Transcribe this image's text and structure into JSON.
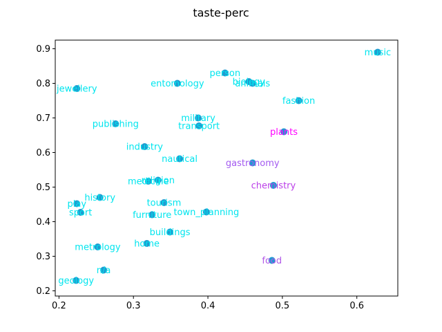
{
  "chart_data": {
    "type": "scatter",
    "title": "taste-perc",
    "xlabel": "",
    "ylabel": "",
    "xlim": [
      0.195,
      0.655
    ],
    "ylim": [
      0.185,
      0.925
    ],
    "xticks": [
      "0.2",
      "0.3",
      "0.4",
      "0.5",
      "0.6"
    ],
    "yticks": [
      "0.2",
      "0.3",
      "0.4",
      "0.5",
      "0.6",
      "0.7",
      "0.8",
      "0.9"
    ],
    "grid": false,
    "marker_color": "#1f9bd0",
    "points": [
      {
        "label": "music",
        "x": 0.628,
        "y": 0.89,
        "color": "#00e5ee"
      },
      {
        "label": "person",
        "x": 0.423,
        "y": 0.83,
        "color": "#00e5ee"
      },
      {
        "label": "biology",
        "x": 0.455,
        "y": 0.805,
        "color": "#00e5ee"
      },
      {
        "label": "animals",
        "x": 0.46,
        "y": 0.8,
        "color": "#00e5ee"
      },
      {
        "label": "entomology",
        "x": 0.359,
        "y": 0.8,
        "color": "#00e5ee"
      },
      {
        "label": "jewellery",
        "x": 0.224,
        "y": 0.785,
        "color": "#00e5ee"
      },
      {
        "label": "fashion",
        "x": 0.522,
        "y": 0.75,
        "color": "#00e5ee"
      },
      {
        "label": "military",
        "x": 0.387,
        "y": 0.7,
        "color": "#00e5ee"
      },
      {
        "label": "transport",
        "x": 0.388,
        "y": 0.677,
        "color": "#00e5ee"
      },
      {
        "label": "publishing",
        "x": 0.276,
        "y": 0.683,
        "color": "#00e5ee"
      },
      {
        "label": "plants",
        "x": 0.502,
        "y": 0.66,
        "color": "#ff00ff"
      },
      {
        "label": "industry",
        "x": 0.315,
        "y": 0.617,
        "color": "#00e5ee"
      },
      {
        "label": "nautical",
        "x": 0.362,
        "y": 0.582,
        "color": "#00e5ee"
      },
      {
        "label": "gastronomy",
        "x": 0.46,
        "y": 0.57,
        "color": "#a35af0"
      },
      {
        "label": "religion",
        "x": 0.333,
        "y": 0.52,
        "color": "#00e5ee"
      },
      {
        "label": "medicine",
        "x": 0.32,
        "y": 0.517,
        "color": "#00e5ee"
      },
      {
        "label": "chemistry",
        "x": 0.488,
        "y": 0.505,
        "color": "#bb3fe8"
      },
      {
        "label": "history",
        "x": 0.255,
        "y": 0.47,
        "color": "#00e5ee"
      },
      {
        "label": "tourism",
        "x": 0.341,
        "y": 0.455,
        "color": "#00e5ee"
      },
      {
        "label": "play",
        "x": 0.224,
        "y": 0.452,
        "color": "#00e5ee"
      },
      {
        "label": "town_planning",
        "x": 0.398,
        "y": 0.428,
        "color": "#00e5ee"
      },
      {
        "label": "sport",
        "x": 0.229,
        "y": 0.427,
        "color": "#00e5ee"
      },
      {
        "label": "furniture",
        "x": 0.325,
        "y": 0.42,
        "color": "#00e5ee"
      },
      {
        "label": "buildings",
        "x": 0.349,
        "y": 0.37,
        "color": "#00e5ee"
      },
      {
        "label": "home",
        "x": 0.318,
        "y": 0.337,
        "color": "#00e5ee"
      },
      {
        "label": "metrology",
        "x": 0.252,
        "y": 0.327,
        "color": "#00e5ee"
      },
      {
        "label": "food",
        "x": 0.486,
        "y": 0.288,
        "color": "#b158e8"
      },
      {
        "label": "n/a",
        "x": 0.26,
        "y": 0.26,
        "color": "#00e5ee"
      },
      {
        "label": "geology",
        "x": 0.223,
        "y": 0.23,
        "color": "#00e5ee"
      }
    ]
  }
}
